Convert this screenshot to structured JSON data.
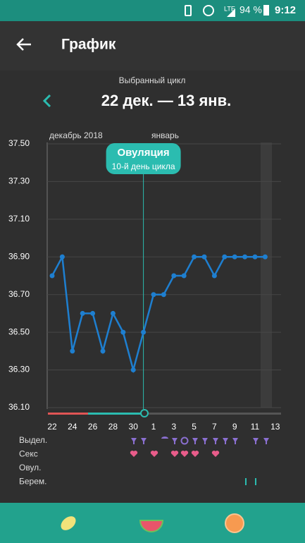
{
  "status_bar": {
    "network": "LTE",
    "battery": "94 %",
    "time": "9:12"
  },
  "app_bar": {
    "title": "График"
  },
  "cycle": {
    "label": "Выбранный цикл",
    "range": "22 дек. — 13 янв."
  },
  "chart_data": {
    "type": "line",
    "month_labels": [
      "декабрь 2018",
      "январь"
    ],
    "annotation": {
      "title": "Овуляция",
      "subtitle": "10-й день цикла"
    },
    "categories": [
      "22",
      null,
      "24",
      null,
      "26",
      null,
      "28",
      null,
      "30",
      null,
      "1",
      null,
      "3",
      null,
      "5",
      null,
      "7",
      null,
      "9",
      null,
      "11",
      null,
      "13"
    ],
    "series": [
      {
        "color": "#1e7fd0",
        "values": [
          36.8,
          36.9,
          36.4,
          36.6,
          36.6,
          36.4,
          36.6,
          36.5,
          36.3,
          36.5,
          36.7,
          36.7,
          36.8,
          36.8,
          36.9,
          36.9,
          36.8,
          36.9,
          36.9,
          36.9,
          36.9,
          36.9,
          null
        ]
      }
    ],
    "ylim": [
      36.1,
      37.5
    ],
    "yticks": [
      {
        "value": 36.1,
        "label": "36.10"
      },
      {
        "value": 36.3,
        "label": "36.30"
      },
      {
        "value": 36.5,
        "label": "36.50"
      },
      {
        "value": 36.7,
        "label": "36.70"
      },
      {
        "value": 36.9,
        "label": "36.90"
      },
      {
        "value": 37.1,
        "label": "37.10"
      },
      {
        "value": 37.3,
        "label": "37.30"
      },
      {
        "value": 37.5,
        "label": "37.50"
      }
    ],
    "grid": true
  },
  "rows": [
    "Выдел.",
    "Секс",
    "Овул.",
    "Берем."
  ]
}
